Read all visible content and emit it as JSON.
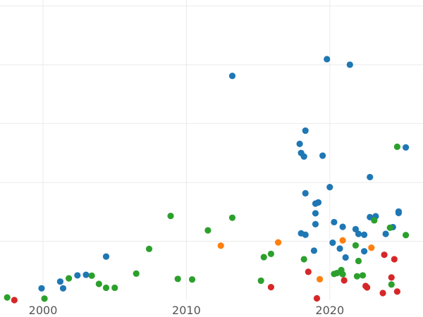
{
  "chart_data": {
    "type": "scatter",
    "title": "",
    "xlabel": "",
    "ylabel": "",
    "xlim": [
      1997,
      2026.5
    ],
    "ylim": [
      0,
      1.02
    ],
    "grid": true,
    "legend": "none",
    "x_ticks": [
      2000,
      2010,
      2020
    ],
    "x_tick_labels": [
      "2000",
      "2010",
      "2020"
    ],
    "y_gridlines": [
      0.2,
      0.4,
      0.6,
      0.8,
      1.0
    ],
    "series": [
      {
        "color": "#1f77b4",
        "points": [
          [
            1999.9,
            0.04
          ],
          [
            2001.2,
            0.063
          ],
          [
            2001.4,
            0.04
          ],
          [
            2002.4,
            0.084
          ],
          [
            2003.0,
            0.086
          ],
          [
            2004.4,
            0.148
          ],
          [
            2013.2,
            0.762
          ],
          [
            2017.9,
            0.531
          ],
          [
            2018.0,
            0.5
          ],
          [
            2018.0,
            0.227
          ],
          [
            2018.2,
            0.488
          ],
          [
            2018.3,
            0.576
          ],
          [
            2018.3,
            0.363
          ],
          [
            2018.3,
            0.222
          ],
          [
            2018.9,
            0.168
          ],
          [
            2019.0,
            0.328
          ],
          [
            2019.0,
            0.295
          ],
          [
            2019.0,
            0.258
          ],
          [
            2019.2,
            0.332
          ],
          [
            2019.5,
            0.491
          ],
          [
            2019.8,
            0.819
          ],
          [
            2020.0,
            0.384
          ],
          [
            2020.2,
            0.195
          ],
          [
            2020.3,
            0.265
          ],
          [
            2020.7,
            0.175
          ],
          [
            2020.9,
            0.249
          ],
          [
            2021.1,
            0.145
          ],
          [
            2021.4,
            0.8
          ],
          [
            2021.8,
            0.241
          ],
          [
            2022.0,
            0.225
          ],
          [
            2022.4,
            0.166
          ],
          [
            2022.4,
            0.222
          ],
          [
            2022.8,
            0.282
          ],
          [
            2022.8,
            0.418
          ],
          [
            2023.2,
            0.285
          ],
          [
            2023.9,
            0.225
          ],
          [
            2024.4,
            0.248
          ],
          [
            2024.8,
            0.301
          ],
          [
            2024.8,
            0.296
          ],
          [
            2025.3,
            0.519
          ]
        ]
      },
      {
        "color": "#2ca02c",
        "points": [
          [
            1997.5,
            0.009
          ],
          [
            2000.1,
            0.005
          ],
          [
            2001.8,
            0.074
          ],
          [
            2003.4,
            0.083
          ],
          [
            2003.9,
            0.055
          ],
          [
            2004.4,
            0.042
          ],
          [
            2005.0,
            0.042
          ],
          [
            2006.5,
            0.09
          ],
          [
            2007.4,
            0.174
          ],
          [
            2008.9,
            0.286
          ],
          [
            2009.4,
            0.072
          ],
          [
            2010.4,
            0.07
          ],
          [
            2011.5,
            0.237
          ],
          [
            2013.2,
            0.28
          ],
          [
            2015.2,
            0.066
          ],
          [
            2015.4,
            0.146
          ],
          [
            2015.9,
            0.157
          ],
          [
            2018.2,
            0.139
          ],
          [
            2020.3,
            0.089
          ],
          [
            2020.5,
            0.092
          ],
          [
            2020.8,
            0.102
          ],
          [
            2020.9,
            0.088
          ],
          [
            2021.8,
            0.186
          ],
          [
            2021.9,
            0.081
          ],
          [
            2022.0,
            0.133
          ],
          [
            2022.3,
            0.084
          ],
          [
            2023.1,
            0.271
          ],
          [
            2024.2,
            0.246
          ],
          [
            2024.3,
            0.053
          ],
          [
            2024.7,
            0.521
          ],
          [
            2025.3,
            0.221
          ]
        ]
      },
      {
        "color": "#d62728",
        "points": [
          [
            1998.0,
            0.0
          ],
          [
            2015.9,
            0.044
          ],
          [
            2018.5,
            0.096
          ],
          [
            2019.1,
            0.006
          ],
          [
            2021.0,
            0.067
          ],
          [
            2022.5,
            0.048
          ],
          [
            2022.6,
            0.043
          ],
          [
            2023.7,
            0.024
          ],
          [
            2023.8,
            0.154
          ],
          [
            2024.3,
            0.077
          ],
          [
            2024.5,
            0.139
          ],
          [
            2024.7,
            0.029
          ]
        ]
      },
      {
        "color": "#ff7f0e",
        "points": [
          [
            2012.4,
            0.185
          ],
          [
            2016.4,
            0.196
          ],
          [
            2019.3,
            0.071
          ],
          [
            2020.9,
            0.203
          ],
          [
            2022.9,
            0.178
          ]
        ]
      }
    ]
  }
}
